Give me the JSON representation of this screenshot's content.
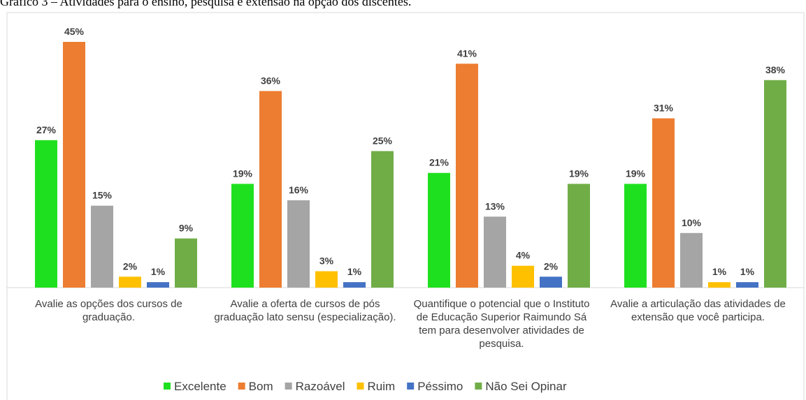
{
  "chart_data": {
    "type": "bar",
    "title": "Gráfico 3 – Atividades para o ensino, pesquisa e extensão na opção dos discentes.",
    "categories": [
      "Avalie as opções dos cursos de graduação.",
      "Avalie a oferta de cursos de pós graduação lato sensu (especialização).",
      "Quantifique o potencial que o Instituto de Educação Superior Raimundo Sá tem para desenvolver atividades de pesquisa.",
      "Avalie a articulação das atividades de extensão que você participa."
    ],
    "series": [
      {
        "name": "Excelente",
        "color": "#1fe01f",
        "values": [
          27,
          19,
          21,
          19
        ],
        "value_labels": [
          "27%",
          "19%",
          "21%",
          "19%"
        ]
      },
      {
        "name": "Bom",
        "color": "#ed7d31",
        "values": [
          45,
          36,
          41,
          31
        ],
        "value_labels": [
          "45%",
          "36%",
          "41%",
          "31%"
        ]
      },
      {
        "name": "Razoável",
        "color": "#a5a5a5",
        "values": [
          15,
          16,
          13,
          10
        ],
        "value_labels": [
          "15%",
          "16%",
          "13%",
          "10%"
        ]
      },
      {
        "name": "Ruim",
        "color": "#ffc000",
        "values": [
          2,
          3,
          4,
          1
        ],
        "value_labels": [
          "2%",
          "3%",
          "4%",
          "1%"
        ]
      },
      {
        "name": "Péssimo",
        "color": "#4472c4",
        "values": [
          1,
          1,
          2,
          1
        ],
        "value_labels": [
          "1%",
          "1%",
          "2%",
          "1%"
        ]
      },
      {
        "name": "Não Sei Opinar",
        "color": "#70ad47",
        "values": [
          9,
          25,
          19,
          38
        ],
        "value_labels": [
          "9%",
          "25%",
          "19%",
          "38%"
        ]
      }
    ],
    "legend": "bottom"
  }
}
